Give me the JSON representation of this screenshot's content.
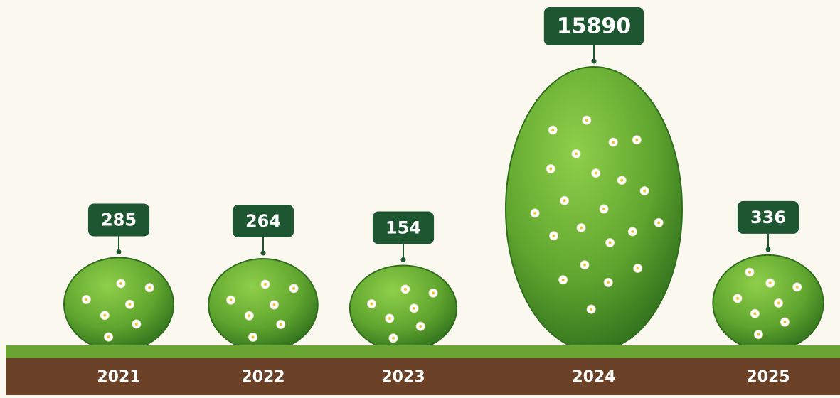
{
  "chart_data": {
    "type": "bar",
    "categories": [
      "2021",
      "2022",
      "2023",
      "2024",
      "2025"
    ],
    "values": [
      285,
      264,
      154,
      15890,
      336
    ],
    "color": "#5fa52e"
  }
}
